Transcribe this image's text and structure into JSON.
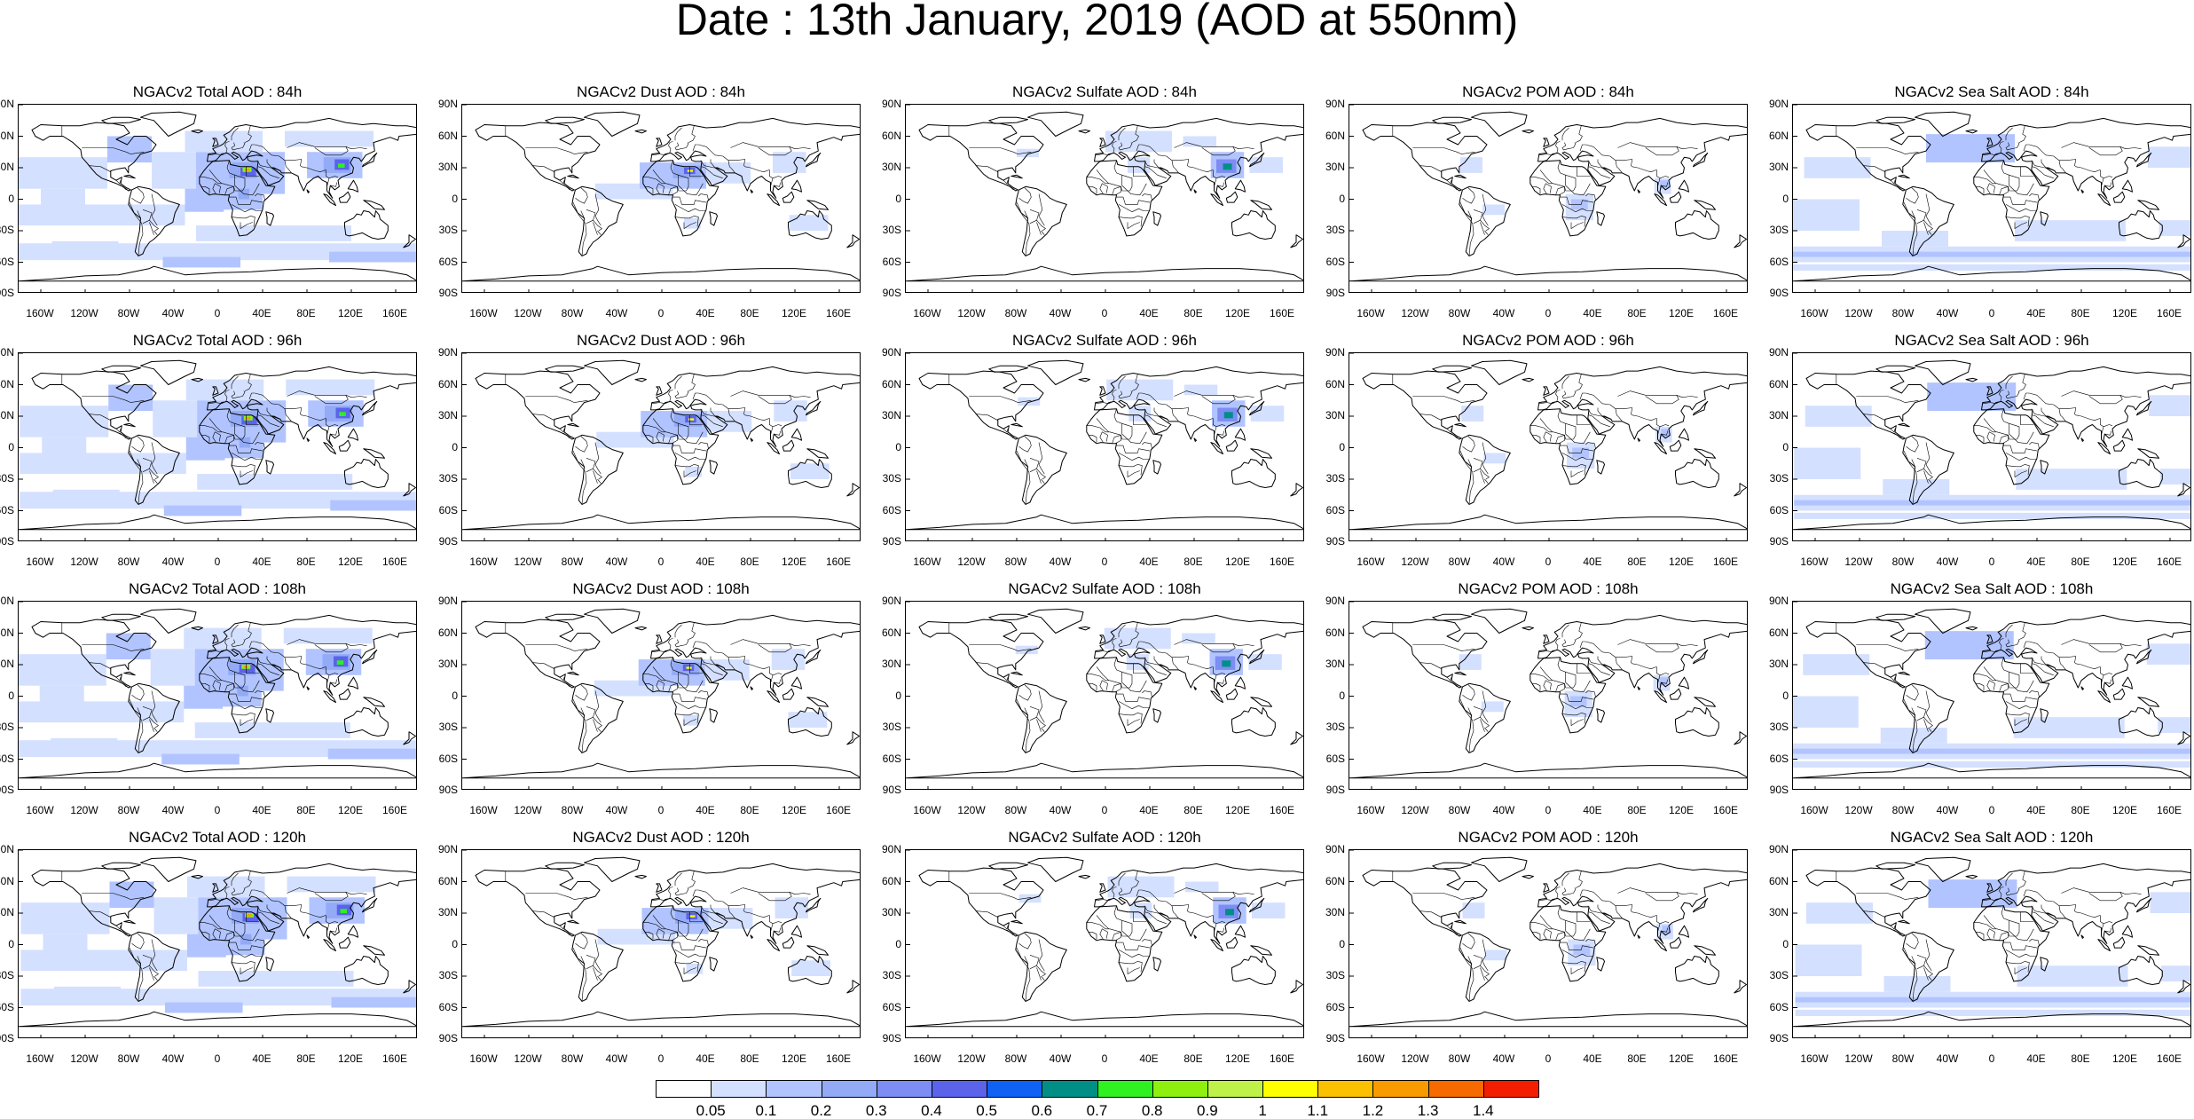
{
  "title": "Date : 13th January, 2019 (AOD at 550nm)",
  "latitude_labels": [
    "90N",
    "60N",
    "30N",
    "0",
    "30S",
    "60S",
    "90S"
  ],
  "longitude_labels": [
    "160W",
    "120W",
    "80W",
    "40W",
    "0",
    "40E",
    "80E",
    "120E",
    "160E"
  ],
  "panels": [
    {
      "title": "NGACv2 Total AOD : 84h",
      "species": "total"
    },
    {
      "title": "NGACv2 Dust AOD : 84h",
      "species": "dust"
    },
    {
      "title": "NGACv2 Sulfate AOD : 84h",
      "species": "sulfate"
    },
    {
      "title": "NGACv2 POM AOD : 84h",
      "species": "pom"
    },
    {
      "title": "NGACv2 Sea Salt AOD : 84h",
      "species": "seasalt"
    },
    {
      "title": "NGACv2 Total AOD : 96h",
      "species": "total"
    },
    {
      "title": "NGACv2 Dust AOD : 96h",
      "species": "dust"
    },
    {
      "title": "NGACv2 Sulfate AOD : 96h",
      "species": "sulfate"
    },
    {
      "title": "NGACv2 POM AOD : 96h",
      "species": "pom"
    },
    {
      "title": "NGACv2 Sea Salt AOD : 96h",
      "species": "seasalt"
    },
    {
      "title": "NGACv2 Total AOD : 108h",
      "species": "total"
    },
    {
      "title": "NGACv2 Dust AOD : 108h",
      "species": "dust"
    },
    {
      "title": "NGACv2 Sulfate AOD : 108h",
      "species": "sulfate"
    },
    {
      "title": "NGACv2 POM AOD : 108h",
      "species": "pom"
    },
    {
      "title": "NGACv2 Sea Salt AOD : 108h",
      "species": "seasalt"
    },
    {
      "title": "NGACv2 Total AOD : 120h",
      "species": "total"
    },
    {
      "title": "NGACv2 Dust AOD : 120h",
      "species": "dust"
    },
    {
      "title": "NGACv2 Sulfate AOD : 120h",
      "species": "sulfate"
    },
    {
      "title": "NGACv2 POM AOD : 120h",
      "species": "pom"
    },
    {
      "title": "NGACv2 Sea Salt  AOD : 120h",
      "species": "seasalt"
    }
  ],
  "colorbar": {
    "labels": [
      "0.05",
      "0.1",
      "0.2",
      "0.3",
      "0.4",
      "0.5",
      "0.6",
      "0.7",
      "0.8",
      "0.9",
      "1",
      "1.1",
      "1.2",
      "1.3",
      "1.4"
    ],
    "colors": [
      "#ffffff",
      "#d4e0ff",
      "#b1c4ff",
      "#93aaf7",
      "#7d8df3",
      "#5a63ea",
      "#0f62f4",
      "#008f86",
      "#2ff020",
      "#8ff010",
      "#bff249",
      "#ffff00",
      "#fbc000",
      "#f79b00",
      "#f76a00",
      "#f31e00"
    ]
  }
}
